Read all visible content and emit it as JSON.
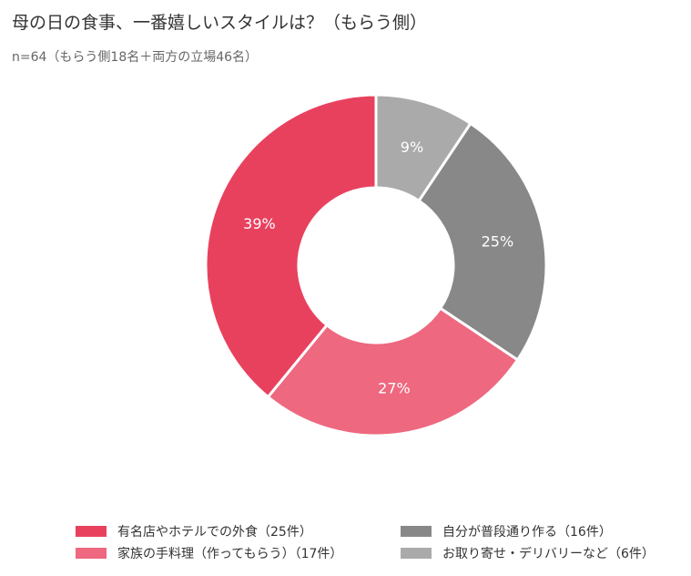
{
  "chart_data": {
    "type": "pie",
    "donut": true,
    "title": "母の日の食事、一番嬉しいスタイルは？（もらう側）",
    "subtitle": "n=64（もらう側18名＋両方の立場46名）",
    "categories": [
      "お取り寄せ・デリバリーなど（6件）",
      "自分が普段通り作る（16件）",
      "家族の手料理（作ってもらう）（17件）",
      "有名店やホテルでの外食（25件）"
    ],
    "values": [
      6,
      16,
      17,
      25
    ],
    "labels": [
      "9%",
      "25%",
      "27%",
      "39%"
    ],
    "colors": [
      "#AAAAAA",
      "#888888",
      "#EE6880",
      "#E8415E"
    ],
    "legend_position": "bottom"
  },
  "legend": [
    {
      "label": "有名店やホテルでの外食（25件）",
      "color": "#E8415E"
    },
    {
      "label": "自分が普段通り作る（16件）",
      "color": "#888888"
    },
    {
      "label": "家族の手料理（作ってもらう）（17件）",
      "color": "#EE6880"
    },
    {
      "label": "お取り寄せ・デリバリーなど（6件）",
      "color": "#AAAAAA"
    }
  ]
}
